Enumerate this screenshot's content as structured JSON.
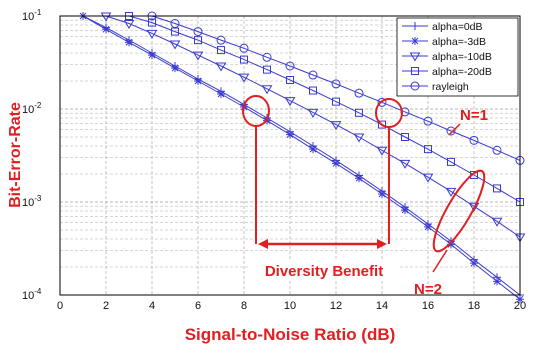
{
  "chart_data": {
    "type": "line",
    "xlabel": "Signal-to-Noise Ratio (dB)",
    "ylabel": "Bit-Error-Rate",
    "xlim": [
      0,
      20
    ],
    "ylim": [
      0.0001,
      0.1
    ],
    "y_scale": "log",
    "grid": "on (major and minor)",
    "legend_position": "top-right",
    "x_ticks": [
      "0",
      "2",
      "4",
      "6",
      "8",
      "10",
      "12",
      "14",
      "16",
      "18",
      "20"
    ],
    "y_ticks": [
      {
        "value": 0.1,
        "base": "10",
        "exp": "-1"
      },
      {
        "value": 0.01,
        "base": "10",
        "exp": "-2"
      },
      {
        "value": 0.001,
        "base": "10",
        "exp": "-3"
      },
      {
        "value": 0.0001,
        "base": "10",
        "exp": "-4"
      }
    ],
    "line_color": "#3a3ad0",
    "series": [
      {
        "name": "alpha=0dB",
        "marker": "plus",
        "x": [
          1,
          2,
          3,
          4,
          5,
          6,
          7,
          8,
          9,
          10,
          11,
          12,
          13,
          14,
          15,
          16,
          17,
          18,
          19,
          20
        ],
        "y": [
          0.1,
          0.075,
          0.055,
          0.04,
          0.029,
          0.021,
          0.0155,
          0.0112,
          0.008,
          0.0057,
          0.004,
          0.0028,
          0.00193,
          0.00131,
          0.00088,
          0.00058,
          0.00038,
          0.00024,
          0.000155,
          0.0001
        ]
      },
      {
        "name": "alpha=-3dB",
        "marker": "star",
        "x": [
          1,
          2,
          3,
          4,
          5,
          6,
          7,
          8,
          9,
          10,
          11,
          12,
          13,
          14,
          15,
          16,
          17,
          18,
          19,
          20
        ],
        "y": [
          0.1,
          0.072,
          0.052,
          0.038,
          0.0275,
          0.02,
          0.0145,
          0.0105,
          0.0075,
          0.0053,
          0.0037,
          0.0026,
          0.0018,
          0.00122,
          0.00082,
          0.00054,
          0.00035,
          0.00022,
          0.00014,
          9e-05
        ]
      },
      {
        "name": "alpha=-10dB",
        "marker": "triangle-down",
        "x": [
          2,
          3,
          4,
          5,
          6,
          7,
          8,
          9,
          10,
          11,
          12,
          13,
          14,
          15,
          16,
          17,
          18,
          19,
          20
        ],
        "y": [
          0.1,
          0.083,
          0.065,
          0.05,
          0.038,
          0.029,
          0.022,
          0.0165,
          0.0123,
          0.0092,
          0.0068,
          0.005,
          0.0036,
          0.0026,
          0.00185,
          0.0013,
          0.0009,
          0.00062,
          0.00042
        ]
      },
      {
        "name": "alpha=-20dB",
        "marker": "square",
        "x": [
          3,
          4,
          5,
          6,
          7,
          8,
          9,
          10,
          11,
          12,
          13,
          14,
          15,
          16,
          17,
          18,
          19,
          20
        ],
        "y": [
          0.1,
          0.085,
          0.068,
          0.055,
          0.043,
          0.034,
          0.0265,
          0.0205,
          0.0158,
          0.012,
          0.0091,
          0.0068,
          0.005,
          0.0037,
          0.0027,
          0.00195,
          0.0014,
          0.001
        ]
      },
      {
        "name": "rayleigh",
        "marker": "circle",
        "x": [
          4,
          5,
          6,
          7,
          8,
          9,
          10,
          11,
          12,
          13,
          14,
          15,
          16,
          17,
          18,
          19,
          20
        ],
        "y": [
          0.1,
          0.083,
          0.068,
          0.055,
          0.045,
          0.036,
          0.029,
          0.0232,
          0.0186,
          0.0148,
          0.0118,
          0.0093,
          0.0074,
          0.0058,
          0.0046,
          0.0036,
          0.0028
        ]
      }
    ],
    "annotations": {
      "diversity_label": "Diversity Benefit",
      "n1_label": "N=1",
      "n2_label": "N=2",
      "color": "#e02020"
    }
  }
}
